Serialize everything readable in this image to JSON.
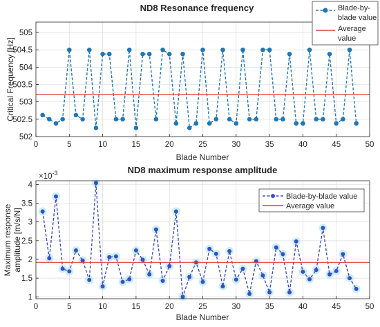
{
  "chart_data": [
    {
      "type": "line",
      "title": "ND8 Resonance frequency",
      "xlabel": "Blade Number",
      "ylabel": "Critical Frequency [Hz]",
      "xlim": [
        0,
        50
      ],
      "ylim": [
        502,
        505.3
      ],
      "xticks": [
        0,
        5,
        10,
        15,
        20,
        25,
        30,
        35,
        40,
        45,
        50
      ],
      "yticks": [
        502,
        502.5,
        503,
        503.5,
        504,
        504.5,
        505
      ],
      "grid": true,
      "legend_position": "top-right",
      "series": [
        {
          "name": "Blade-by-blade value",
          "style": "dashed-marker",
          "color": "#1f77b4",
          "x": [
            1,
            2,
            3,
            4,
            5,
            6,
            7,
            8,
            9,
            10,
            11,
            12,
            13,
            14,
            15,
            16,
            17,
            18,
            19,
            20,
            21,
            22,
            23,
            24,
            25,
            26,
            27,
            28,
            29,
            30,
            31,
            32,
            33,
            34,
            35,
            36,
            37,
            38,
            39,
            40,
            41,
            42,
            43,
            44,
            45,
            46,
            47,
            48
          ],
          "values": [
            502.62,
            502.5,
            502.38,
            502.5,
            504.5,
            502.62,
            502.5,
            504.5,
            502.25,
            504.38,
            504.38,
            502.5,
            502.5,
            504.5,
            502.25,
            504.38,
            504.38,
            502.5,
            504.5,
            504.38,
            502.38,
            504.38,
            502.25,
            502.38,
            504.5,
            502.38,
            502.5,
            504.5,
            502.5,
            502.38,
            504.5,
            502.5,
            502.5,
            504.5,
            504.5,
            502.5,
            502.5,
            504.38,
            502.38,
            502.38,
            504.5,
            502.5,
            502.5,
            504.38,
            502.38,
            502.5,
            504.5,
            502.38
          ]
        },
        {
          "name": "Average value",
          "style": "solid",
          "color": "#e03c3c",
          "x": [
            0,
            50
          ],
          "values": [
            503.22,
            503.22
          ]
        }
      ]
    },
    {
      "type": "line",
      "title": "ND8 maximum response amplitude",
      "xlabel": "Blade Number",
      "ylabel_lines": [
        "Maximum response",
        "amplitude [m/s/N]"
      ],
      "exponent_label": "×10",
      "exponent_value": "-3",
      "xlim": [
        0,
        50
      ],
      "ylim": [
        0.95,
        4.1
      ],
      "xticks": [
        0,
        5,
        10,
        15,
        20,
        25,
        30,
        35,
        40,
        45,
        50
      ],
      "yticks": [
        1,
        1.5,
        2,
        2.5,
        3,
        3.5,
        4
      ],
      "grid": true,
      "legend_position": "top-right",
      "series": [
        {
          "name": "Blade-by-blade value",
          "style": "dashed-marker",
          "color": "#3a4fc0",
          "x": [
            1,
            2,
            3,
            4,
            5,
            6,
            7,
            8,
            9,
            10,
            11,
            12,
            13,
            14,
            15,
            16,
            17,
            18,
            19,
            20,
            21,
            22,
            23,
            24,
            25,
            26,
            27,
            28,
            29,
            30,
            31,
            32,
            33,
            34,
            35,
            36,
            37,
            38,
            39,
            40,
            41,
            42,
            43,
            44,
            45,
            46,
            47,
            48
          ],
          "values": [
            3.28,
            2.03,
            3.68,
            1.75,
            1.68,
            2.24,
            1.97,
            1.45,
            4.04,
            1.28,
            2.06,
            2.08,
            1.4,
            1.47,
            2.24,
            1.99,
            1.6,
            2.8,
            1.43,
            1.82,
            3.28,
            1.0,
            1.53,
            1.92,
            1.4,
            2.28,
            2.15,
            1.28,
            2.22,
            1.46,
            1.75,
            1.08,
            1.95,
            1.57,
            1.12,
            2.32,
            2.14,
            1.12,
            2.48,
            1.67,
            1.47,
            1.72,
            2.84,
            1.6,
            1.69,
            2.14,
            1.5,
            1.21
          ]
        },
        {
          "name": "Average value",
          "style": "solid",
          "color": "#e03c3c",
          "x": [
            0,
            50
          ],
          "values": [
            1.92,
            1.92
          ]
        }
      ]
    }
  ]
}
